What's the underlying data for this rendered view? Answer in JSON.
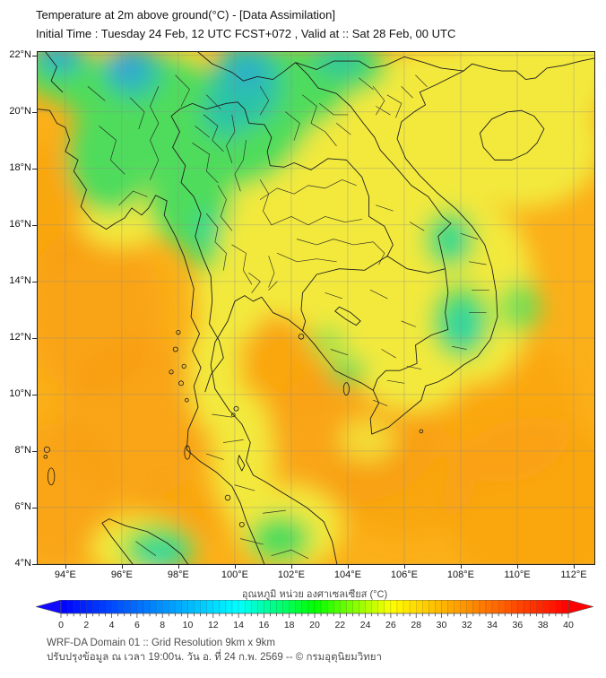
{
  "title": {
    "line1": "Temperature at 2m above ground(°C) - [Data Assimilation]",
    "line2": "Initial Time : Tuesday 24 Feb, 12 UTC FCST+072 , Valid at :: Sat 28 Feb, 00 UTC"
  },
  "map": {
    "extent": {
      "lon_min": 93.02,
      "lon_max": 112.73,
      "lat_min": 4.0,
      "lat_max": 22.12
    },
    "lat_ticks": [
      "22°N",
      "20°N",
      "18°N",
      "16°N",
      "14°N",
      "12°N",
      "10°N",
      "8°N",
      "6°N",
      "4°N"
    ],
    "lon_ticks": [
      "94°E",
      "96°E",
      "98°E",
      "100°E",
      "102°E",
      "104°E",
      "106°E",
      "108°E",
      "110°E",
      "112°E"
    ],
    "base_color": "#FBAF18",
    "palette": {
      "O": "#F89B0E",
      "Y": "#F3E93C",
      "G": "#4FDC5C",
      "T": "#29C3A8",
      "B": "#379FDC",
      "C": "#2FD6A8"
    },
    "field_blobs": [
      [
        95.0,
        13.0,
        2.4,
        3.0,
        "O",
        0.55
      ],
      [
        96.6,
        9.2,
        2.8,
        2.8,
        "O",
        0.5
      ],
      [
        104.2,
        8.6,
        3.0,
        2.4,
        "O",
        0.5
      ],
      [
        110.6,
        6.2,
        3.2,
        3.0,
        "O",
        0.45
      ],
      [
        93.8,
        6.5,
        2.0,
        2.5,
        "O",
        0.5
      ],
      [
        100.7,
        12.85,
        1.2,
        1.0,
        "O",
        0.6
      ],
      [
        102.0,
        11.0,
        1.6,
        1.4,
        "O",
        0.45
      ],
      [
        106.0,
        7.0,
        2.5,
        2.0,
        "O",
        0.4
      ],
      [
        109.5,
        9.5,
        2.6,
        2.6,
        "O",
        0.35
      ],
      [
        93.5,
        16.5,
        1.4,
        2.4,
        "O",
        0.4
      ],
      [
        98.0,
        5.8,
        1.6,
        1.2,
        "O",
        0.4
      ],
      [
        101.0,
        16.6,
        3.2,
        2.8,
        "Y",
        1
      ],
      [
        103.2,
        15.6,
        4.6,
        3.0,
        "Y",
        1
      ],
      [
        105.6,
        17.6,
        3.4,
        2.8,
        "Y",
        1
      ],
      [
        107.2,
        19.9,
        3.2,
        2.4,
        "Y",
        1
      ],
      [
        109.8,
        20.9,
        3.4,
        1.8,
        "Y",
        1
      ],
      [
        110.2,
        18.8,
        2.8,
        2.2,
        "Y",
        1
      ],
      [
        108.6,
        13.6,
        2.0,
        3.2,
        "Y",
        1
      ],
      [
        105.0,
        12.8,
        2.6,
        2.2,
        "Y",
        1
      ],
      [
        106.3,
        10.7,
        1.9,
        1.3,
        "Y",
        1
      ],
      [
        102.5,
        14.2,
        2.2,
        1.6,
        "Y",
        1
      ],
      [
        99.9,
        13.6,
        1.3,
        1.8,
        "Y",
        1
      ],
      [
        99.3,
        10.8,
        0.95,
        2.2,
        "Y",
        1
      ],
      [
        100.3,
        7.8,
        1.1,
        2.4,
        "Y",
        1
      ],
      [
        101.9,
        5.3,
        1.9,
        1.5,
        "Y",
        1
      ],
      [
        96.0,
        16.1,
        1.5,
        0.9,
        "Y",
        1
      ],
      [
        111.7,
        21.9,
        2.2,
        1.1,
        "Y",
        1
      ],
      [
        96.6,
        4.6,
        1.7,
        1.1,
        "Y",
        1
      ],
      [
        104.7,
        8.4,
        1.0,
        0.8,
        "Y",
        0.8
      ],
      [
        96.4,
        20.6,
        0.65,
        1.6,
        "Y",
        0.9
      ],
      [
        96.9,
        18.9,
        0.75,
        1.9,
        "Y",
        0.9
      ],
      [
        97.4,
        17.3,
        0.6,
        1.3,
        "Y",
        0.85
      ],
      [
        95.3,
        21.6,
        0.8,
        0.6,
        "Y",
        0.8
      ],
      [
        98.3,
        21.95,
        0.9,
        0.5,
        "Y",
        0.7
      ],
      [
        102.6,
        19.3,
        1.4,
        1.1,
        "Y",
        0.9
      ],
      [
        104.4,
        20.6,
        1.3,
        1.0,
        "Y",
        0.85
      ],
      [
        97.3,
        19.9,
        2.4,
        2.2,
        "G",
        1
      ],
      [
        95.6,
        18.4,
        1.5,
        2.0,
        "G",
        1
      ],
      [
        99.7,
        19.3,
        2.6,
        2.0,
        "G",
        1
      ],
      [
        101.9,
        20.9,
        2.2,
        1.5,
        "G",
        1
      ],
      [
        98.4,
        16.9,
        1.5,
        1.7,
        "G",
        1
      ],
      [
        100.9,
        19.6,
        1.8,
        1.3,
        "G",
        1
      ],
      [
        103.9,
        21.6,
        1.5,
        1.0,
        "G",
        1
      ],
      [
        95.0,
        20.9,
        1.3,
        1.1,
        "G",
        1
      ],
      [
        93.6,
        21.5,
        1.1,
        1.0,
        "G",
        1
      ],
      [
        98.9,
        15.5,
        0.62,
        1.15,
        "G",
        1
      ],
      [
        107.6,
        15.5,
        0.9,
        1.05,
        "G",
        1
      ],
      [
        108.0,
        12.6,
        1.05,
        1.35,
        "G",
        1
      ],
      [
        104.0,
        10.85,
        0.7,
        0.5,
        "G",
        0.8
      ],
      [
        101.6,
        4.9,
        1.1,
        0.85,
        "G",
        1
      ],
      [
        97.3,
        4.55,
        1.3,
        0.8,
        "G",
        1
      ],
      [
        110.1,
        13.1,
        0.75,
        0.9,
        "G",
        0.75
      ],
      [
        103.3,
        11.9,
        0.7,
        0.5,
        "G",
        0.5
      ],
      [
        100.4,
        21.0,
        1.25,
        1.5,
        "T",
        1
      ],
      [
        99.7,
        20.0,
        0.85,
        0.95,
        "T",
        0.9
      ],
      [
        96.4,
        21.4,
        1.0,
        0.95,
        "T",
        1
      ],
      [
        93.85,
        21.9,
        0.9,
        0.6,
        "T",
        1
      ],
      [
        103.7,
        21.8,
        0.9,
        0.6,
        "T",
        0.8
      ],
      [
        96.15,
        21.6,
        0.65,
        0.5,
        "B",
        1
      ],
      [
        93.7,
        22.0,
        0.5,
        0.35,
        "B",
        0.9
      ],
      [
        100.45,
        21.35,
        0.55,
        0.5,
        "B",
        0.7
      ],
      [
        108.05,
        12.45,
        0.55,
        0.75,
        "C",
        1
      ],
      [
        107.65,
        15.45,
        0.4,
        0.55,
        "C",
        0.9
      ],
      [
        97.35,
        4.3,
        0.8,
        0.5,
        "C",
        0.9
      ],
      [
        98.95,
        15.9,
        0.3,
        0.7,
        "C",
        0.85
      ]
    ]
  },
  "colorbar": {
    "label": "อุณหภูมิ หน่วย องศาเซลเซียส (°C)",
    "min": 0,
    "max": 40,
    "tick_step": 2,
    "cell_step": 0.5,
    "tick_labels": [
      "0",
      "2",
      "4",
      "6",
      "8",
      "10",
      "12",
      "14",
      "16",
      "18",
      "20",
      "22",
      "24",
      "26",
      "28",
      "30",
      "32",
      "34",
      "36",
      "38",
      "40"
    ]
  },
  "footer": {
    "line1": "WRF-DA Domain 01 :: Grid Resolution 9km x 9km",
    "line2": "ปรับปรุงข้อมูล ณ เวลา 19:00น. วัน อ. ที่ 24 ก.พ. 2569 -- © กรมอุตุนิยมวิทยา"
  }
}
